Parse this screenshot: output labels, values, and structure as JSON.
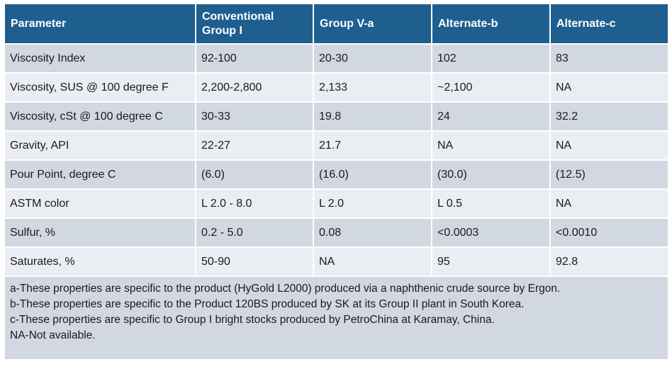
{
  "table": {
    "headers": [
      "Parameter",
      "Conventional Group I",
      "Group V-a",
      "Alternate-b",
      "Alternate-c"
    ],
    "rows": [
      [
        "Viscosity Index",
        "92-100",
        "20-30",
        "102",
        "83"
      ],
      [
        "Viscosity, SUS @ 100 degree F",
        "2,200-2,800",
        "2,133",
        "~2,100",
        "NA"
      ],
      [
        "Viscosity, cSt @ 100 degree C",
        "30-33",
        "19.8",
        "24",
        "32.2"
      ],
      [
        "Gravity, API",
        "22-27",
        "21.7",
        "NA",
        "NA"
      ],
      [
        "Pour Point, degree C",
        "(6.0)",
        "(16.0)",
        "(30.0)",
        "(12.5)"
      ],
      [
        "ASTM color",
        "L 2.0 - 8.0",
        "L 2.0",
        "L 0.5",
        "NA"
      ],
      [
        "Sulfur, %",
        "0.2 - 5.0",
        "0.08",
        "<0.0003",
        "<0.0010"
      ],
      [
        "Saturates, %",
        "50-90",
        "NA",
        "95",
        "92.8"
      ]
    ],
    "notes": [
      "a-These properties are specific to the product (HyGold L2000) produced via a naphthenic crude source by Ergon.",
      "b-These properties are specific to the Product 120BS produced by SK at its Group II plant in South Korea.",
      "c-These properties are specific to Group I bright stocks produced by PetroChina at Karamay, China.",
      "NA-Not available."
    ]
  }
}
